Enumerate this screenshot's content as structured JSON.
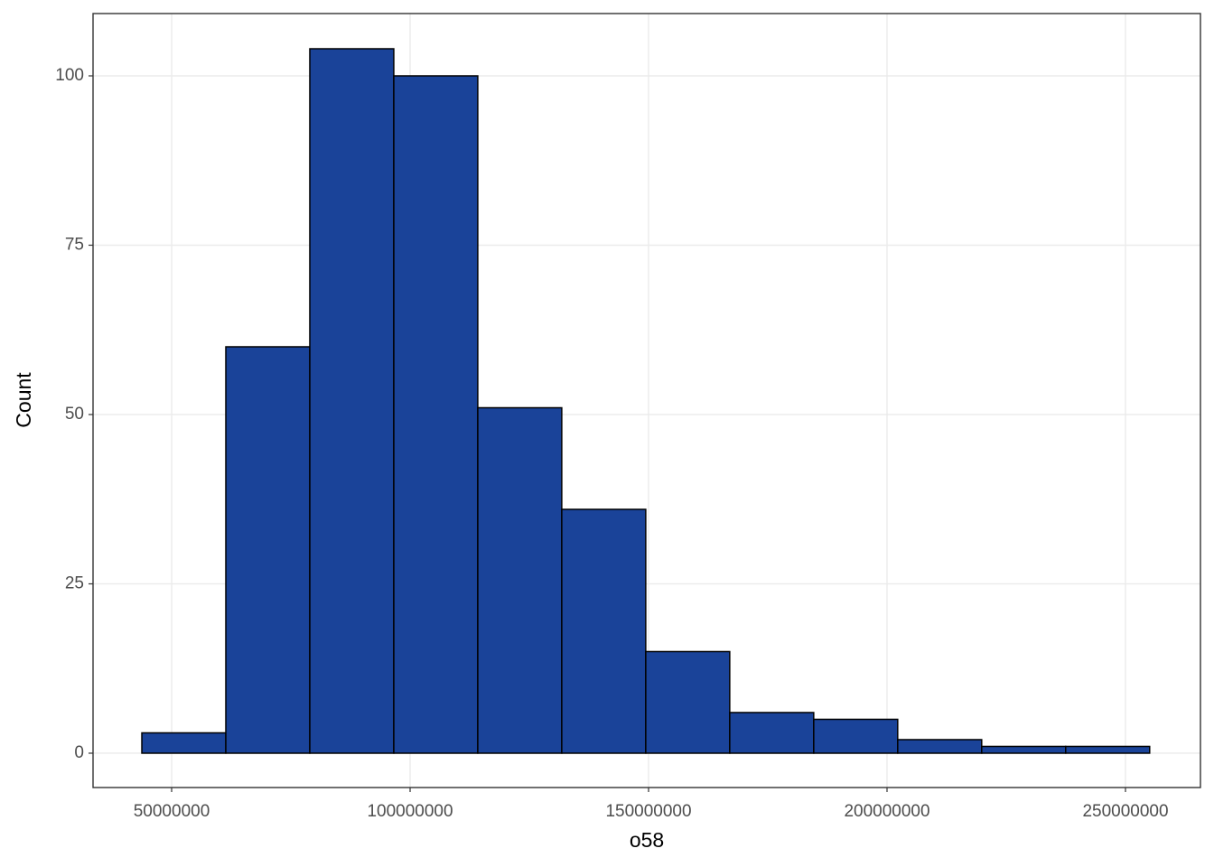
{
  "chart_data": {
    "type": "histogram",
    "xlabel": "o58",
    "ylabel": "Count",
    "bins": [
      43750000,
      61360000,
      78970000,
      96580000,
      114190000,
      131800000,
      149410000,
      167020000,
      184630000,
      202240000,
      219850000,
      237460000,
      255070000
    ],
    "values": [
      3,
      60,
      104,
      100,
      51,
      36,
      15,
      6,
      5,
      2,
      1,
      1
    ],
    "color": "#1A4399",
    "edgecolor": "#000000",
    "xlim": [
      33520000,
      265720000
    ],
    "ylim": [
      -5.07,
      109.2
    ],
    "xticks": [
      50000000,
      100000000,
      150000000,
      200000000,
      250000000
    ],
    "yticks": [
      0,
      25,
      50,
      75,
      100
    ],
    "grid": true
  }
}
